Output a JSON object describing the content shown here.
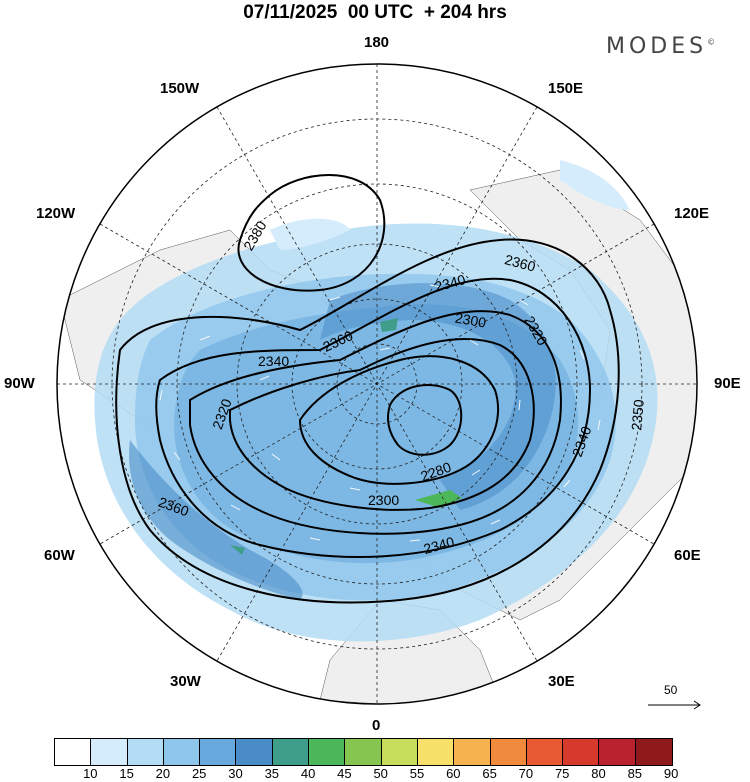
{
  "title": "07/11/2025  00 UTC  + 204 hrs",
  "brand": "MODES",
  "brand_mark": "©",
  "longitude_labels": {
    "top": "180",
    "top_left": "150W",
    "top_right": "150E",
    "upper_left": "120W",
    "upper_right": "120E",
    "left": "90W",
    "right": "90E",
    "lower_left": "60W",
    "lower_right": "60E",
    "bottom_left": "30W",
    "bottom_right": "30E",
    "bottom": "0"
  },
  "contour_labels": [
    "2380",
    "2360",
    "2340",
    "2320",
    "2300",
    "2280",
    "2340",
    "2360",
    "2320",
    "2350",
    "2340",
    "2300",
    "2340",
    "2360"
  ],
  "vector_scale_label": "50",
  "colorbar": {
    "labels": [
      "10",
      "15",
      "20",
      "25",
      "30",
      "35",
      "40",
      "45",
      "50",
      "55",
      "60",
      "65",
      "70",
      "75",
      "80",
      "85",
      "90"
    ],
    "colors": [
      "#ffffff",
      "#d4ecfb",
      "#b3dcf5",
      "#8ec6ec",
      "#67a9dc",
      "#4a8cc8",
      "#3f9e8a",
      "#4db85a",
      "#86c650",
      "#c5dd5a",
      "#f8e16a",
      "#f5b24f",
      "#f08a3c",
      "#e85a33",
      "#d63a2d",
      "#bb2230",
      "#8e1a1c"
    ]
  }
}
